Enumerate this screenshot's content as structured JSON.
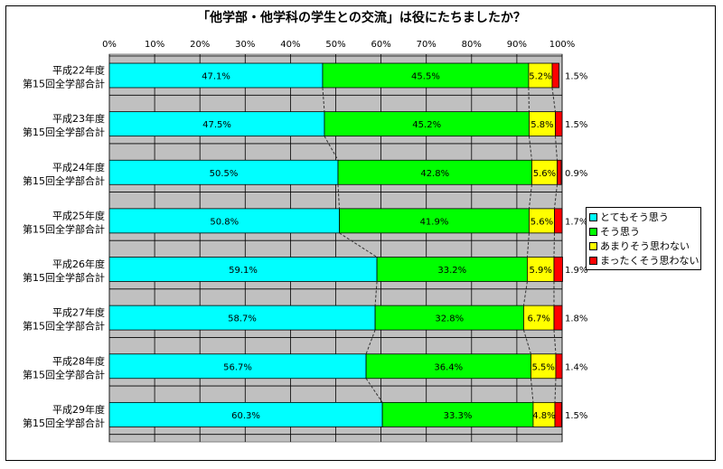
{
  "chart_data": {
    "type": "bar",
    "orientation": "horizontal",
    "stacked": true,
    "title": "「他学部・他学科の学生との交流」は役にたちましたか？",
    "xlim": [
      0,
      100
    ],
    "x_ticks": [
      "0%",
      "10%",
      "20%",
      "30%",
      "40%",
      "50%",
      "60%",
      "70%",
      "80%",
      "90%",
      "100%"
    ],
    "grid": true,
    "series_lines": true,
    "legend_position": "right",
    "categories": [
      [
        "平成22年度",
        "第15回全学部合計"
      ],
      [
        "平成23年度",
        "第15回全学部合計"
      ],
      [
        "平成24年度",
        "第15回全学部合計"
      ],
      [
        "平成25年度",
        "第15回全学部合計"
      ],
      [
        "平成26年度",
        "第15回全学部合計"
      ],
      [
        "平成27年度",
        "第15回全学部合計"
      ],
      [
        "平成28年度",
        "第15回全学部合計"
      ],
      [
        "平成29年度",
        "第15回全学部合計"
      ]
    ],
    "series": [
      {
        "name": "とてもそう思う",
        "color": "#00FFFF",
        "values": [
          47.1,
          47.5,
          50.5,
          50.8,
          59.1,
          58.7,
          56.7,
          60.3
        ],
        "labels": [
          "47.1%",
          "47.5%",
          "50.5%",
          "50.8%",
          "59.1%",
          "58.7%",
          "56.7%",
          "60.3%"
        ]
      },
      {
        "name": "そう思う",
        "color": "#00FF00",
        "values": [
          45.5,
          45.2,
          42.8,
          41.9,
          33.2,
          32.8,
          36.4,
          33.3
        ],
        "labels": [
          "45.5%",
          "45.2%",
          "42.8%",
          "41.9%",
          "33.2%",
          "32.8%",
          "36.4%",
          "33.3%"
        ]
      },
      {
        "name": "あまりそう思わない",
        "color": "#FFFF00",
        "values": [
          5.2,
          5.8,
          5.6,
          5.6,
          5.9,
          6.7,
          5.5,
          4.8
        ],
        "labels": [
          "5.2%",
          "5.8%",
          "5.6%",
          "5.6%",
          "5.9%",
          "6.7%",
          "5.5%",
          "4.8%"
        ]
      },
      {
        "name": "まったくそう思わない",
        "color": "#FF0000",
        "values": [
          1.5,
          1.5,
          0.9,
          1.7,
          1.9,
          1.8,
          1.4,
          1.5
        ],
        "labels": [
          "1.5%",
          "1.5%",
          "0.9%",
          "1.7%",
          "1.9%",
          "1.8%",
          "1.4%",
          "1.5%"
        ]
      }
    ]
  }
}
